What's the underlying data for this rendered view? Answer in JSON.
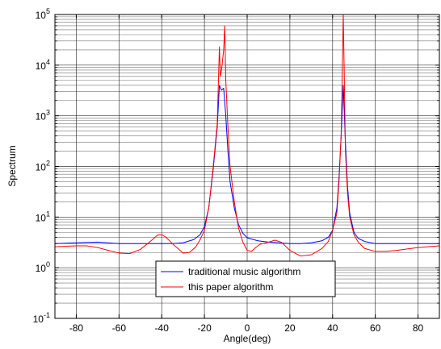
{
  "chart_data": {
    "type": "line",
    "title": "",
    "xlabel": "Angle(deg)",
    "ylabel": "Spectrum",
    "xlim": [
      -90,
      90
    ],
    "ylim": [
      0.1,
      100000
    ],
    "yscale": "log",
    "grid": "major and minor",
    "legend_position": "bottom-center",
    "x_ticks": [
      -80,
      -60,
      -40,
      -20,
      0,
      20,
      40,
      60,
      80
    ],
    "x_tick_labels": [
      "-80",
      "-60",
      "-40",
      "-20",
      "0",
      "20",
      "40",
      "60",
      "80"
    ],
    "y_ticks": [
      {
        "value": 0.1,
        "base": "10",
        "exp": "-1"
      },
      {
        "value": 1,
        "base": "10",
        "exp": "0"
      },
      {
        "value": 10,
        "base": "10",
        "exp": "1"
      },
      {
        "value": 100,
        "base": "10",
        "exp": "2"
      },
      {
        "value": 1000,
        "base": "10",
        "exp": "3"
      },
      {
        "value": 10000,
        "base": "10",
        "exp": "4"
      },
      {
        "value": 100000,
        "base": "10",
        "exp": "5"
      }
    ],
    "series": [
      {
        "name": "traditional music algorithm",
        "color": "#0000ff",
        "x": [
          -90,
          -80,
          -70,
          -60,
          -50,
          -40,
          -35,
          -30,
          -25,
          -22,
          -20,
          -18,
          -16,
          -14,
          -13,
          -12,
          -11,
          -10,
          -9,
          -8,
          -6,
          -4,
          -2,
          0,
          5,
          10,
          15,
          20,
          25,
          30,
          35,
          38,
          40,
          42,
          43,
          44,
          45,
          46,
          47,
          48,
          50,
          52,
          55,
          60,
          70,
          80,
          90
        ],
        "y": [
          3.0,
          3.1,
          3.2,
          3.0,
          3.0,
          3.0,
          3.0,
          3.1,
          3.6,
          4.5,
          6.5,
          15,
          80,
          600,
          4000,
          3200,
          3500,
          1000,
          200,
          50,
          15,
          7,
          4.8,
          3.9,
          3.4,
          3.2,
          3.1,
          3.0,
          3.0,
          3.1,
          3.4,
          4.0,
          5.5,
          15,
          60,
          400,
          4000,
          300,
          40,
          12,
          5,
          3.8,
          3.3,
          3.0,
          3.0,
          3.0,
          3.0
        ]
      },
      {
        "name": "this paper algorithm",
        "color": "#ff0000",
        "x": [
          -90,
          -80,
          -75,
          -70,
          -65,
          -60,
          -55,
          -50,
          -45,
          -42,
          -40,
          -38,
          -35,
          -30,
          -27,
          -24,
          -22,
          -20,
          -18,
          -16,
          -14,
          -13,
          -12.5,
          -12,
          -11,
          -10.5,
          -10,
          -9,
          -8,
          -6,
          -4,
          -2,
          0,
          2,
          4,
          6,
          10,
          13,
          16,
          20,
          25,
          30,
          35,
          38,
          40,
          42,
          43,
          44,
          44.5,
          45,
          45.5,
          46,
          47,
          48,
          50,
          52,
          55,
          60,
          65,
          70,
          80,
          90
        ],
        "y": [
          2.6,
          2.7,
          2.7,
          2.5,
          2.2,
          1.95,
          1.9,
          2.3,
          3.4,
          4.4,
          4.5,
          4.0,
          3.0,
          1.95,
          2.0,
          2.6,
          3.6,
          5.5,
          15,
          90,
          700,
          23000,
          6000,
          8000,
          20000,
          60000,
          5000,
          600,
          100,
          20,
          6,
          3.2,
          2.2,
          2.1,
          2.5,
          2.9,
          3.2,
          3.5,
          3.2,
          2.2,
          1.7,
          1.8,
          2.4,
          3.3,
          5.5,
          12,
          50,
          400,
          6000,
          100000,
          5000,
          200,
          30,
          10,
          4.5,
          3.2,
          2.4,
          2.1,
          2.1,
          2.2,
          2.5,
          2.7
        ]
      }
    ]
  }
}
